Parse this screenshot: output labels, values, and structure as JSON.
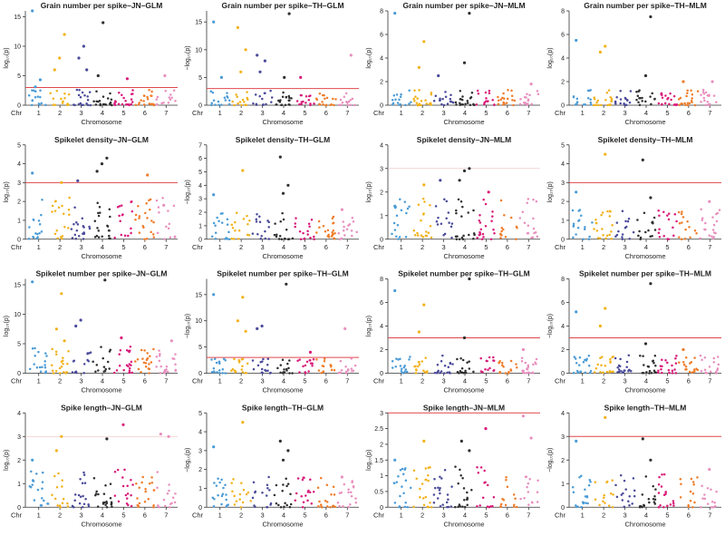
{
  "colors": {
    "chr1": "#4a9bd6",
    "chr2": "#f2b21b",
    "chr3": "#4a4a9a",
    "chr4": "#2f2f2f",
    "chr5": "#d81b7a",
    "chr6": "#ef7d2a",
    "chr7": "#e88fbf",
    "threshold": "#e0474c"
  },
  "chart_data": [
    {
      "type": "scatter",
      "title": "Grain number per spike–JN–GLM",
      "ylabel": "log₁₀(p)",
      "xlabel": "Chromosome",
      "x_prefix": "Chr",
      "chromosomes": [
        "1",
        "2",
        "3",
        "4",
        "5",
        "6",
        "7"
      ],
      "ylim": [
        0,
        16
      ],
      "yticks": [
        0,
        5,
        10,
        15
      ],
      "threshold": 3,
      "peaks": [
        [
          0,
          16
        ],
        [
          0,
          4.3
        ],
        [
          0,
          3.1
        ],
        [
          1,
          12
        ],
        [
          1,
          8
        ],
        [
          1,
          6
        ],
        [
          2,
          10
        ],
        [
          2,
          8
        ],
        [
          2,
          6
        ],
        [
          3,
          14
        ],
        [
          3,
          5
        ],
        [
          4,
          4.5
        ],
        [
          6,
          5
        ]
      ],
      "level": 2.6
    },
    {
      "type": "scatter",
      "title": "Grain number per spike–TH–GLM",
      "ylabel": "−log₁₀(p)",
      "xlabel": "Chromosome",
      "x_prefix": "Chr",
      "chromosomes": [
        "1",
        "2",
        "3",
        "4",
        "5",
        "6",
        "7"
      ],
      "ylim": [
        0,
        17
      ],
      "yticks": [
        0,
        5,
        10,
        15
      ],
      "threshold": 3,
      "peaks": [
        [
          0,
          15
        ],
        [
          0,
          5
        ],
        [
          1,
          14
        ],
        [
          1,
          10
        ],
        [
          1,
          6
        ],
        [
          2,
          9
        ],
        [
          2,
          8
        ],
        [
          2,
          6
        ],
        [
          3,
          16.5
        ],
        [
          3,
          5
        ],
        [
          4,
          5
        ],
        [
          6,
          9
        ]
      ],
      "level": 2.6
    },
    {
      "type": "scatter",
      "title": "Grain number per spike–JN–MLM",
      "ylabel": "log₁₀(p)",
      "xlabel": "Chromosome",
      "x_prefix": "Chr",
      "chromosomes": [
        "1",
        "2",
        "3",
        "4",
        "5",
        "6",
        "7"
      ],
      "ylim": [
        0,
        8
      ],
      "yticks": [
        0,
        2,
        4,
        6,
        8
      ],
      "threshold": null,
      "peaks": [
        [
          0,
          7.8
        ],
        [
          1,
          5.4
        ],
        [
          1,
          3.2
        ],
        [
          3,
          7.8
        ],
        [
          3,
          3.6
        ],
        [
          2,
          2.5
        ],
        [
          6,
          1.8
        ]
      ],
      "level": 1.3
    },
    {
      "type": "scatter",
      "title": "Grain number per spike–TH–MLM",
      "ylabel": "log₁₀(p)",
      "xlabel": "Chromosome",
      "x_prefix": "Chr",
      "chromosomes": [
        "1",
        "2",
        "3",
        "4",
        "5",
        "6",
        "7"
      ],
      "ylim": [
        0,
        8
      ],
      "yticks": [
        0,
        2,
        4,
        6,
        8
      ],
      "threshold": null,
      "peaks": [
        [
          0,
          5.5
        ],
        [
          1,
          5
        ],
        [
          1,
          4.5
        ],
        [
          3,
          7.5
        ],
        [
          3,
          2.5
        ],
        [
          5,
          2
        ],
        [
          6,
          2
        ]
      ],
      "level": 1.3
    },
    {
      "type": "scatter",
      "title": "Spikelet density–JN–GLM",
      "ylabel": "log₁₀(p)",
      "xlabel": "Chromosome",
      "x_prefix": "Chr",
      "chromosomes": [
        "1",
        "2",
        "3",
        "4",
        "5",
        "6",
        "7"
      ],
      "ylim": [
        0,
        5
      ],
      "yticks": [
        0,
        1,
        2,
        3,
        4,
        5
      ],
      "threshold": 3,
      "peaks": [
        [
          0,
          3.5
        ],
        [
          1,
          3.0
        ],
        [
          2,
          3.1
        ],
        [
          3,
          4.3
        ],
        [
          3,
          4.0
        ],
        [
          3,
          3.6
        ],
        [
          5,
          3.4
        ],
        [
          6,
          1.8
        ]
      ],
      "level": 2.2
    },
    {
      "type": "scatter",
      "title": "Spikelet density–TH–GLM",
      "ylabel": "−log₁₀(p)",
      "xlabel": "Chromosome",
      "x_prefix": "Chr",
      "chromosomes": [
        "1",
        "2",
        "3",
        "4",
        "5",
        "6",
        "7"
      ],
      "ylim": [
        0,
        7
      ],
      "yticks": [
        0,
        1,
        2,
        3,
        4,
        5,
        6,
        7
      ],
      "threshold": null,
      "peaks": [
        [
          0,
          3.3
        ],
        [
          1,
          5.1
        ],
        [
          3,
          6.1
        ],
        [
          3,
          4.0
        ],
        [
          3,
          3.4
        ],
        [
          6,
          2.2
        ]
      ],
      "level": 2.0
    },
    {
      "type": "scatter",
      "title": "Spikelet density–JN–MLM",
      "ylabel": "log₁₀(p)",
      "xlabel": "Chromosome",
      "x_prefix": "Chr",
      "chromosomes": [
        "1",
        "2",
        "3",
        "4",
        "5",
        "6",
        "7"
      ],
      "ylim": [
        0,
        4
      ],
      "yticks": [
        0,
        1,
        2,
        3,
        4
      ],
      "threshold": 3,
      "threshold_faint": true,
      "peaks": [
        [
          0,
          1.4
        ],
        [
          1,
          2.3
        ],
        [
          2,
          2.5
        ],
        [
          3,
          3.0
        ],
        [
          3,
          2.9
        ],
        [
          3,
          2.5
        ],
        [
          4,
          2.0
        ]
      ],
      "level": 1.8
    },
    {
      "type": "scatter",
      "title": "Spikelet density–TH–MLM",
      "ylabel": "log₁₀(p)",
      "xlabel": "Chromosome",
      "x_prefix": "Chr",
      "chromosomes": [
        "1",
        "2",
        "3",
        "4",
        "5",
        "6",
        "7"
      ],
      "ylim": [
        0,
        5
      ],
      "yticks": [
        0,
        1,
        2,
        3,
        4,
        5
      ],
      "threshold": 3,
      "peaks": [
        [
          0,
          2.5
        ],
        [
          1,
          4.5
        ],
        [
          3,
          4.2
        ],
        [
          3,
          2.2
        ],
        [
          6,
          2.0
        ]
      ],
      "level": 1.6
    },
    {
      "type": "scatter",
      "title": "Spikelet number per spike–JN–GLM",
      "ylabel": "log₁₀(p)",
      "xlabel": "Chromosome",
      "x_prefix": "Chr",
      "chromosomes": [
        "1",
        "2",
        "3",
        "4",
        "5",
        "6",
        "7"
      ],
      "ylim": [
        0,
        16
      ],
      "yticks": [
        0,
        5,
        10,
        15
      ],
      "threshold": null,
      "peaks": [
        [
          0,
          15.5
        ],
        [
          1,
          13.5
        ],
        [
          1,
          7.5
        ],
        [
          1,
          5.5
        ],
        [
          2,
          9
        ],
        [
          2,
          8
        ],
        [
          3,
          15.8
        ],
        [
          4,
          6
        ],
        [
          6,
          5.5
        ]
      ],
      "level": 4.5
    },
    {
      "type": "scatter",
      "title": "Spikelet number per spike–TH–GLM",
      "ylabel": "−log₁₀(p)",
      "xlabel": "Chromosome",
      "x_prefix": "Chr",
      "chromosomes": [
        "1",
        "2",
        "3",
        "4",
        "5",
        "6",
        "7"
      ],
      "ylim": [
        0,
        18
      ],
      "yticks": [
        0,
        5,
        10,
        15
      ],
      "threshold": 3,
      "peaks": [
        [
          0,
          15
        ],
        [
          1,
          14.5
        ],
        [
          1,
          10
        ],
        [
          1,
          8
        ],
        [
          2,
          9
        ],
        [
          2,
          8.5
        ],
        [
          3,
          17
        ],
        [
          6,
          8.5
        ],
        [
          4,
          4
        ]
      ],
      "level": 2.8
    },
    {
      "type": "scatter",
      "title": "Spikelet number per spike–TH–GLM",
      "ylabel": "log₁₀(p)",
      "xlabel": "Chromosome",
      "x_prefix": "Chr",
      "chromosomes": [
        "1",
        "2",
        "3",
        "4",
        "5",
        "6",
        "7"
      ],
      "ylim": [
        0,
        8
      ],
      "yticks": [
        0,
        2,
        4,
        6,
        8
      ],
      "threshold": 3,
      "peaks": [
        [
          0,
          7
        ],
        [
          1,
          5.8
        ],
        [
          1,
          3.5
        ],
        [
          3,
          8.1
        ],
        [
          3,
          3.0
        ],
        [
          6,
          2.0
        ]
      ],
      "level": 1.5
    },
    {
      "type": "scatter",
      "title": "Spikelet number per spike–TH–MLM",
      "ylabel": "−log₁₀(p)",
      "xlabel": "Chromosome",
      "x_prefix": "Chr",
      "chromosomes": [
        "1",
        "2",
        "3",
        "4",
        "5",
        "6",
        "7"
      ],
      "ylim": [
        0,
        8
      ],
      "yticks": [
        0,
        2,
        4,
        6,
        8
      ],
      "threshold": 3,
      "peaks": [
        [
          0,
          5.2
        ],
        [
          1,
          5.5
        ],
        [
          1,
          4.0
        ],
        [
          3,
          7.6
        ],
        [
          3,
          2.5
        ],
        [
          5,
          2.0
        ]
      ],
      "level": 1.6
    },
    {
      "type": "scatter",
      "title": "Spike length–JN–GLM",
      "ylabel": "log₁₀(p)",
      "xlabel": "Chromosome",
      "x_prefix": "Chr",
      "chromosomes": [
        "1",
        "2",
        "3",
        "4",
        "5",
        "6",
        "7"
      ],
      "ylim": [
        0,
        4
      ],
      "yticks": [
        0,
        1,
        2,
        3,
        4
      ],
      "threshold": 3,
      "threshold_faint": true,
      "peaks": [
        [
          0,
          2.0
        ],
        [
          1,
          3.0
        ],
        [
          1,
          2.4
        ],
        [
          3,
          2.9
        ],
        [
          4,
          3.5
        ],
        [
          6,
          3.1
        ],
        [
          6,
          3.0
        ]
      ],
      "level": 1.6
    },
    {
      "type": "scatter",
      "title": "Spike length–TH–GLM",
      "ylabel": "−log₁₀(p)",
      "xlabel": "Chromosome",
      "x_prefix": "Chr",
      "chromosomes": [
        "1",
        "2",
        "3",
        "4",
        "5",
        "6",
        "7"
      ],
      "ylim": [
        0,
        5
      ],
      "yticks": [
        0,
        1,
        2,
        3,
        4,
        5
      ],
      "threshold": null,
      "peaks": [
        [
          0,
          3.2
        ],
        [
          1,
          4.5
        ],
        [
          3,
          3.5
        ],
        [
          3,
          3.0
        ],
        [
          3,
          2.5
        ],
        [
          6,
          1.6
        ]
      ],
      "level": 1.6
    },
    {
      "type": "scatter",
      "title": "Spike length–JN–MLM",
      "ylabel": "log₁₀(p)",
      "xlabel": "Chromosome",
      "x_prefix": "Chr",
      "chromosomes": [
        "1",
        "2",
        "3",
        "4",
        "5",
        "6",
        "7"
      ],
      "ylim": [
        0,
        3
      ],
      "yticks": [
        0,
        0.5,
        1.0,
        1.5,
        2.0,
        2.5,
        3.0
      ],
      "threshold": 3,
      "peaks": [
        [
          0,
          1.5
        ],
        [
          1,
          2.1
        ],
        [
          3,
          2.1
        ],
        [
          3,
          1.8
        ],
        [
          4,
          2.5
        ],
        [
          6,
          2.9
        ],
        [
          6,
          2.2
        ]
      ],
      "level": 1.3
    },
    {
      "type": "scatter",
      "title": "Spike length–TH–MLM",
      "ylabel": "−log₁₀(p)",
      "xlabel": "Chromosome",
      "x_prefix": "Chr",
      "chromosomes": [
        "1",
        "2",
        "3",
        "4",
        "5",
        "6",
        "7"
      ],
      "ylim": [
        0,
        4
      ],
      "yticks": [
        0,
        1,
        2,
        3,
        4
      ],
      "threshold": 3,
      "peaks": [
        [
          0,
          2.8
        ],
        [
          1,
          3.8
        ],
        [
          3,
          2.9
        ],
        [
          3,
          2.0
        ],
        [
          6,
          1.6
        ]
      ],
      "level": 1.4
    }
  ]
}
